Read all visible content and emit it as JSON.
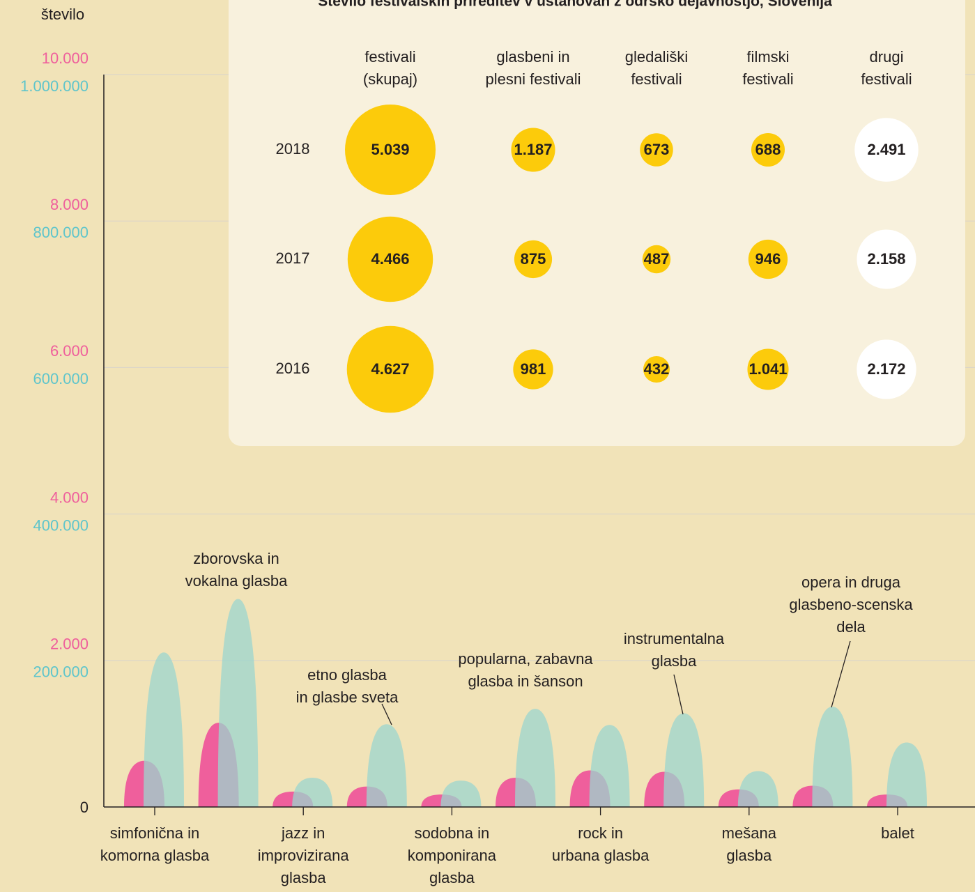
{
  "chart_data": [
    {
      "type": "area",
      "ylabel": "število",
      "categories": [
        "simfonična in\nkomorna glasba",
        "zborovska in\nvokalna glasba",
        "jazz in\nimprovizirana\nglasba",
        "etno glasba\nin glasbe sveta",
        "sodobna in\nkomponirana\nglasba",
        "popularna, zabavna\nglasba in šanson",
        "rock in\nurbana glasba",
        "instrumentalna\nglasba",
        "mešana\nglasba",
        "opera in druga\nglasbeno-scenska\ndela",
        "balet"
      ],
      "series": [
        {
          "color": "#ef5f9c",
          "values": [
            630,
            1150,
            210,
            280,
            170,
            400,
            500,
            480,
            240,
            290,
            170
          ]
        },
        {
          "color": "#9bd5cf",
          "axis": "y2",
          "values": [
            211000,
            284000,
            40000,
            113000,
            36000,
            134000,
            112000,
            128000,
            49000,
            137000,
            88000
          ]
        }
      ],
      "ylim": [
        0,
        10000
      ],
      "yticks": [
        0,
        {
          "value": 2000,
          "label": "2.000"
        },
        {
          "value": 4000,
          "label": "4.000"
        },
        {
          "value": 6000,
          "label": "6.000"
        },
        {
          "value": 8000,
          "label": "8.000"
        },
        {
          "value": 10000,
          "label": "10.000"
        }
      ],
      "y2lim": [
        0,
        1000000
      ],
      "y2ticks": [
        {
          "value": 200000,
          "label": "200.000"
        },
        {
          "value": 400000,
          "label": "400.000"
        },
        {
          "value": 600000,
          "label": "600.000"
        },
        {
          "value": 800000,
          "label": "800.000"
        },
        {
          "value": 1000000,
          "label": "1.000.000"
        }
      ],
      "ytick_color": "#ef5f9c",
      "y2tick_color": "#5fc5cb",
      "grid": true
    },
    {
      "type": "bubble",
      "title": "Število festivalskih prireditev v ustanovah z odrsko dejavnostjo, Slovenija",
      "categories": [
        "festivali\n(skupaj)",
        "glasbeni in\nplesni festivali",
        "gledališki\nfestivali",
        "filmski\nfestivali",
        "drugi\nfestivali"
      ],
      "colors": [
        "#fccb0b",
        "#fccb0b",
        "#fccb0b",
        "#fccb0b",
        "#ffffff"
      ],
      "series": [
        {
          "name": "2018",
          "values": [
            5039,
            1187,
            673,
            688,
            2491
          ],
          "value_labels": [
            "5.039",
            "1.187",
            "673",
            "688",
            "2.491"
          ]
        },
        {
          "name": "2017",
          "values": [
            4466,
            875,
            487,
            946,
            2158
          ],
          "value_labels": [
            "4.466",
            "875",
            "487",
            "946",
            "2.158"
          ]
        },
        {
          "name": "2016",
          "values": [
            4627,
            981,
            432,
            1041,
            2172
          ],
          "value_labels": [
            "4.627",
            "981",
            "432",
            "1.041",
            "2.172"
          ]
        }
      ]
    }
  ]
}
